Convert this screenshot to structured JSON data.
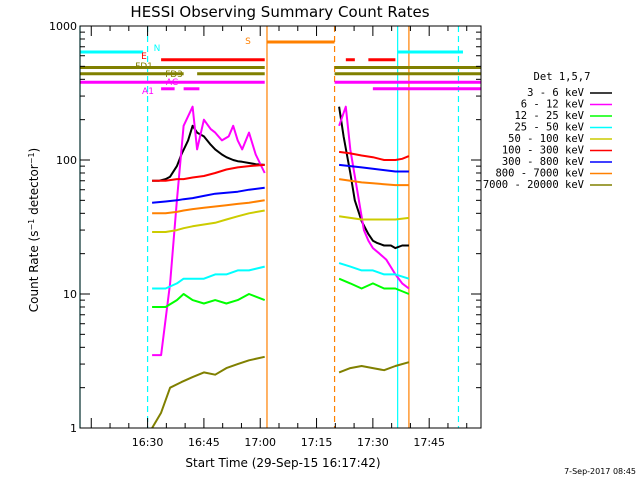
{
  "chart_data": {
    "type": "line",
    "title": "HESSI Observing Summary Count Rates",
    "xlabel": "Start Time (29-Sep-15 16:17:42)",
    "ylabel": "Count Rate (s⁻¹ detector⁻¹)",
    "yscale": "log",
    "ylim": [
      1,
      1000
    ],
    "xlim_minutes": [
      16.2,
      17.98
    ],
    "x_ticks": [
      "16:30",
      "16:45",
      "17:00",
      "17:15",
      "17:30",
      "17:45"
    ],
    "x_tick_hours": [
      16.5,
      16.75,
      17.0,
      17.25,
      17.5,
      17.75
    ],
    "y_ticks": [
      "1",
      "10",
      "100",
      "1000"
    ],
    "y_tick_values": [
      1,
      10,
      100,
      1000
    ],
    "legend_title": "Det 1,5,7",
    "timestamp": "7-Sep-2017 08:45",
    "series": [
      {
        "name": "3 - 6 keV",
        "color": "#000000",
        "segments": [
          {
            "x": [
              16.52,
              16.55,
              16.58,
              16.6,
              16.63,
              16.65,
              16.68,
              16.7,
              16.72,
              16.75,
              16.78,
              16.8,
              16.83,
              16.85,
              16.88,
              16.9,
              16.92,
              16.95,
              16.98,
              17.02
            ],
            "y": [
              70,
              70,
              72,
              75,
              90,
              110,
              140,
              180,
              160,
              150,
              130,
              120,
              110,
              105,
              100,
              98,
              97,
              95,
              93,
              92
            ]
          },
          {
            "x": [
              17.35,
              17.37,
              17.4,
              17.42,
              17.45,
              17.48,
              17.5,
              17.52,
              17.55,
              17.58,
              17.6,
              17.63,
              17.66
            ],
            "y": [
              250,
              150,
              80,
              50,
              35,
              28,
              25,
              24,
              23,
              23,
              22,
              23,
              23
            ]
          }
        ]
      },
      {
        "name": "6 - 12 keV",
        "color": "#ff00ff",
        "segments": [
          {
            "x": [
              16.52,
              16.56,
              16.6,
              16.63,
              16.66,
              16.7,
              16.72,
              16.75,
              16.78,
              16.8,
              16.83,
              16.86,
              16.88,
              16.9,
              16.92,
              16.95,
              16.98,
              17.02
            ],
            "y": [
              3.5,
              3.5,
              12,
              50,
              180,
              250,
              120,
              200,
              170,
              160,
              140,
              150,
              180,
              140,
              120,
              160,
              110,
              80
            ]
          },
          {
            "x": [
              17.35,
              17.38,
              17.4,
              17.43,
              17.46,
              17.48,
              17.5,
              17.53,
              17.56,
              17.6,
              17.63,
              17.66
            ],
            "y": [
              180,
              250,
              120,
              60,
              30,
              25,
              22,
              20,
              18,
              14,
              12,
              11
            ]
          }
        ]
      },
      {
        "name": "12 - 25 keV",
        "color": "#00ff00",
        "segments": [
          {
            "x": [
              16.52,
              16.58,
              16.63,
              16.66,
              16.7,
              16.75,
              16.8,
              16.85,
              16.9,
              16.95,
              17.02
            ],
            "y": [
              8,
              8,
              9,
              10,
              9,
              8.5,
              9,
              8.5,
              9,
              10,
              9
            ]
          },
          {
            "x": [
              17.35,
              17.4,
              17.45,
              17.5,
              17.55,
              17.6,
              17.66
            ],
            "y": [
              13,
              12,
              11,
              12,
              11,
              11,
              10
            ]
          }
        ]
      },
      {
        "name": "25 - 50 keV",
        "color": "#00ffff",
        "segments": [
          {
            "x": [
              16.52,
              16.58,
              16.63,
              16.66,
              16.7,
              16.75,
              16.8,
              16.85,
              16.9,
              16.95,
              17.02
            ],
            "y": [
              11,
              11,
              12,
              13,
              13,
              13,
              14,
              14,
              15,
              15,
              16
            ]
          },
          {
            "x": [
              17.35,
              17.4,
              17.45,
              17.5,
              17.55,
              17.6,
              17.66
            ],
            "y": [
              17,
              16,
              15,
              15,
              14,
              14,
              13
            ]
          }
        ]
      },
      {
        "name": "50 - 100 keV",
        "color": "#cccc00",
        "segments": [
          {
            "x": [
              16.52,
              16.58,
              16.63,
              16.66,
              16.7,
              16.75,
              16.8,
              16.85,
              16.9,
              16.95,
              17.02
            ],
            "y": [
              29,
              29,
              30,
              31,
              32,
              33,
              34,
              36,
              38,
              40,
              42
            ]
          },
          {
            "x": [
              17.35,
              17.4,
              17.45,
              17.5,
              17.55,
              17.6,
              17.66
            ],
            "y": [
              38,
              37,
              36,
              36,
              36,
              36,
              37
            ]
          }
        ]
      },
      {
        "name": "100 - 300 keV",
        "color": "#ff0000",
        "segments": [
          {
            "x": [
              16.52,
              16.58,
              16.63,
              16.66,
              16.7,
              16.75,
              16.8,
              16.85,
              16.9,
              16.95,
              17.02
            ],
            "y": [
              70,
              70,
              72,
              72,
              74,
              76,
              80,
              85,
              88,
              90,
              92
            ]
          },
          {
            "x": [
              17.35,
              17.4,
              17.45,
              17.5,
              17.55,
              17.6,
              17.63,
              17.66
            ],
            "y": [
              115,
              112,
              108,
              105,
              100,
              100,
              102,
              107
            ]
          }
        ]
      },
      {
        "name": "300 - 800 keV",
        "color": "#0000ff",
        "segments": [
          {
            "x": [
              16.52,
              16.58,
              16.63,
              16.66,
              16.7,
              16.75,
              16.8,
              16.85,
              16.9,
              16.95,
              17.02
            ],
            "y": [
              48,
              49,
              50,
              51,
              52,
              54,
              56,
              57,
              58,
              60,
              62
            ]
          },
          {
            "x": [
              17.35,
              17.4,
              17.45,
              17.5,
              17.55,
              17.6,
              17.66
            ],
            "y": [
              92,
              90,
              88,
              86,
              84,
              82,
              82
            ]
          }
        ]
      },
      {
        "name": "800 - 7000 keV",
        "color": "#ff8000",
        "segments": [
          {
            "x": [
              16.52,
              16.58,
              16.63,
              16.66,
              16.7,
              16.75,
              16.8,
              16.85,
              16.9,
              16.95,
              17.02
            ],
            "y": [
              40,
              40,
              41,
              42,
              43,
              44,
              45,
              46,
              47,
              48,
              50
            ]
          },
          {
            "x": [
              17.35,
              17.4,
              17.45,
              17.5,
              17.55,
              17.6,
              17.66
            ],
            "y": [
              72,
              70,
              68,
              67,
              66,
              65,
              65
            ]
          }
        ]
      },
      {
        "name": "7000 - 20000 keV",
        "color": "#808000",
        "segments": [
          {
            "x": [
              16.52,
              16.56,
              16.6,
              16.65,
              16.7,
              16.75,
              16.8,
              16.85,
              16.9,
              16.95,
              17.02
            ],
            "y": [
              1.0,
              1.3,
              2.0,
              2.2,
              2.4,
              2.6,
              2.5,
              2.8,
              3.0,
              3.2,
              3.4
            ]
          },
          {
            "x": [
              17.35,
              17.4,
              17.45,
              17.5,
              17.55,
              17.6,
              17.66
            ],
            "y": [
              2.6,
              2.8,
              2.9,
              2.8,
              2.7,
              2.9,
              3.1
            ]
          }
        ]
      }
    ],
    "flags": [
      {
        "label": "N",
        "color": "#00ffff",
        "y_level": 640,
        "intervals": [
          [
            16.2,
            16.48
          ],
          [
            17.61,
            17.9
          ]
        ]
      },
      {
        "label": "S",
        "color": "#ff8000",
        "y_level": 760,
        "intervals": [
          [
            17.03,
            17.33
          ]
        ]
      },
      {
        "label": "E",
        "color": "#ff0000",
        "y_level": 560,
        "intervals": [
          [
            16.56,
            17.02
          ],
          [
            17.38,
            17.42
          ],
          [
            17.48,
            17.6
          ]
        ]
      },
      {
        "label": "FD1",
        "color": "#808000",
        "y_level": 490,
        "intervals": [
          [
            16.2,
            17.02
          ],
          [
            17.33,
            17.98
          ]
        ]
      },
      {
        "label": "FD3",
        "color": "#808000",
        "y_level": 440,
        "intervals": [
          [
            16.2,
            16.66
          ],
          [
            16.72,
            17.02
          ],
          [
            17.33,
            17.98
          ]
        ]
      },
      {
        "label": "AC",
        "color": "#ff00ff",
        "y_level": 380,
        "intervals": [
          [
            16.2,
            17.02
          ],
          [
            17.33,
            17.98
          ]
        ]
      },
      {
        "label": "A1",
        "color": "#ff00ff",
        "y_level": 340,
        "intervals": [
          [
            16.56,
            16.62
          ],
          [
            16.66,
            16.73
          ],
          [
            17.5,
            17.98
          ]
        ]
      }
    ],
    "vertical_markers": [
      {
        "x": 16.2,
        "color": "#00ffff",
        "style": "solid"
      },
      {
        "x": 16.5,
        "color": "#00ffff",
        "style": "dashed"
      },
      {
        "x": 17.03,
        "color": "#ff8000",
        "style": "solid"
      },
      {
        "x": 17.33,
        "color": "#ff8000",
        "style": "dashed"
      },
      {
        "x": 17.61,
        "color": "#00ffff",
        "style": "solid"
      },
      {
        "x": 17.66,
        "color": "#ff8000",
        "style": "solid"
      },
      {
        "x": 17.88,
        "color": "#00ffff",
        "style": "dashed"
      }
    ]
  }
}
